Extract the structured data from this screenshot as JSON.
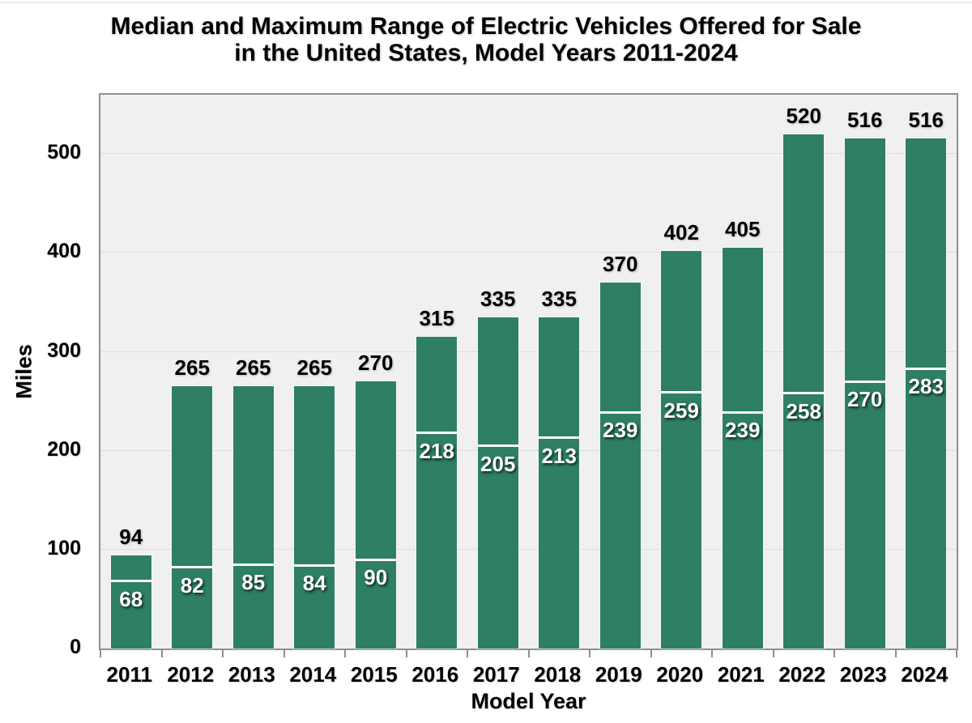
{
  "title": {
    "line1": "Median and Maximum Range of Electric Vehicles Offered for Sale",
    "line2": "in the United States, Model Years 2011-2024"
  },
  "axes": {
    "y_title": "Miles",
    "x_title": "Model Year",
    "y_ticks": [
      0,
      100,
      200,
      300,
      400,
      500
    ],
    "y_max": 560
  },
  "colors": {
    "bar": "#2e7f64",
    "plot_background": "#f0f0f0",
    "gridline": "#dcdcdc",
    "axis_border": "#8f8f8f",
    "median_line": "#ffffff",
    "max_label_text": "#000000",
    "median_label_text": "#ffffff",
    "title_text": "#000000",
    "page_background": "#ffffff"
  },
  "chart_data": {
    "type": "bar",
    "title": "Median and Maximum Range of Electric Vehicles Offered for Sale in the United States, Model Years 2011-2024",
    "xlabel": "Model Year",
    "ylabel": "Miles",
    "ylim": [
      0,
      560
    ],
    "y_tick_interval": 100,
    "grid": true,
    "legend_position": "none",
    "categories": [
      "2011",
      "2012",
      "2013",
      "2014",
      "2015",
      "2016",
      "2017",
      "2018",
      "2019",
      "2020",
      "2021",
      "2022",
      "2023",
      "2024"
    ],
    "series": [
      {
        "name": "Maximum Range",
        "label_placement": "black text above bar top",
        "values": [
          94,
          265,
          265,
          265,
          270,
          315,
          335,
          335,
          370,
          402,
          405,
          520,
          516,
          516
        ]
      },
      {
        "name": "Median Range",
        "label_placement": "white text below white median line inside bar",
        "values": [
          68,
          82,
          85,
          84,
          90,
          218,
          205,
          213,
          239,
          259,
          239,
          258,
          270,
          283
        ]
      }
    ]
  }
}
